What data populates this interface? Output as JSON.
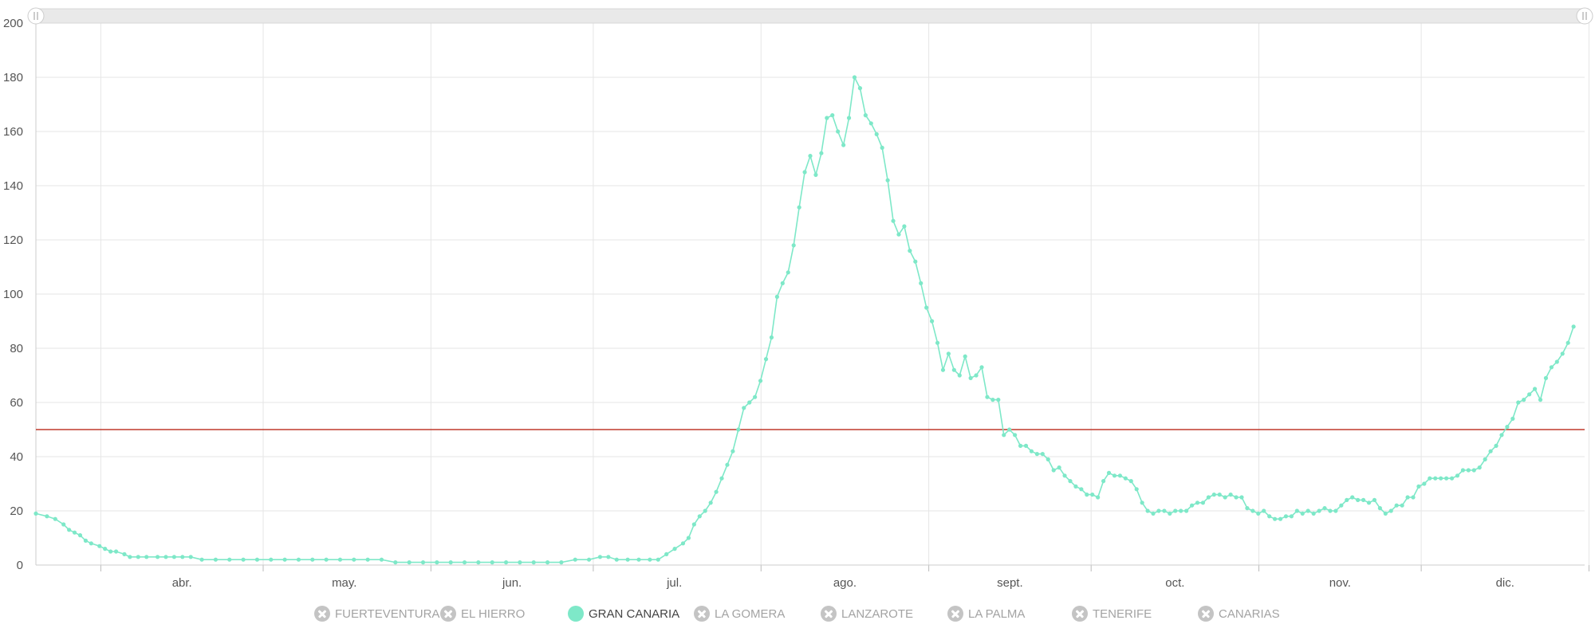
{
  "chart_data": {
    "type": "line",
    "title": "",
    "xlabel": "",
    "ylabel": "",
    "ylim": [
      0,
      200
    ],
    "yticks": [
      0,
      20,
      40,
      60,
      80,
      100,
      120,
      140,
      160,
      180,
      200
    ],
    "x_start": "2020-03-20",
    "months": [
      "abr.",
      "may.",
      "jun.",
      "jul.",
      "ago.",
      "sept.",
      "oct.",
      "nov.",
      "dic."
    ],
    "threshold": {
      "value": 50,
      "color": "#c0392b"
    },
    "grid": true,
    "legend_position": "bottom",
    "series": [
      {
        "name": "GRAN CANARIA",
        "color": "#7ee8c8",
        "points": [
          [
            0,
            19
          ],
          [
            4,
            18
          ],
          [
            7,
            17
          ],
          [
            10,
            15
          ],
          [
            12,
            13
          ],
          [
            14,
            12
          ],
          [
            16,
            11
          ],
          [
            18,
            9
          ],
          [
            20,
            8
          ],
          [
            23,
            7
          ],
          [
            25,
            6
          ],
          [
            27,
            5
          ],
          [
            29,
            5
          ],
          [
            32,
            4
          ],
          [
            34,
            3
          ],
          [
            37,
            3
          ],
          [
            40,
            3
          ],
          [
            44,
            3
          ],
          [
            47,
            3
          ],
          [
            50,
            3
          ],
          [
            53,
            3
          ],
          [
            56,
            3
          ],
          [
            60,
            2
          ],
          [
            65,
            2
          ],
          [
            70,
            2
          ],
          [
            75,
            2
          ],
          [
            80,
            2
          ],
          [
            85,
            2
          ],
          [
            90,
            2
          ],
          [
            95,
            2
          ],
          [
            100,
            2
          ],
          [
            105,
            2
          ],
          [
            110,
            2
          ],
          [
            115,
            2
          ],
          [
            120,
            2
          ],
          [
            125,
            2
          ],
          [
            130,
            1
          ],
          [
            135,
            1
          ],
          [
            140,
            1
          ],
          [
            145,
            1
          ],
          [
            150,
            1
          ],
          [
            155,
            1
          ],
          [
            160,
            1
          ],
          [
            165,
            1
          ],
          [
            170,
            1
          ],
          [
            175,
            1
          ],
          [
            180,
            1
          ],
          [
            185,
            1
          ],
          [
            190,
            1
          ],
          [
            195,
            2
          ],
          [
            200,
            2
          ],
          [
            204,
            3
          ],
          [
            207,
            3
          ],
          [
            210,
            2
          ],
          [
            214,
            2
          ],
          [
            218,
            2
          ],
          [
            222,
            2
          ],
          [
            225,
            2
          ],
          [
            228,
            4
          ],
          [
            231,
            6
          ],
          [
            234,
            8
          ],
          [
            236,
            10
          ],
          [
            238,
            15
          ],
          [
            240,
            18
          ],
          [
            242,
            20
          ],
          [
            244,
            23
          ],
          [
            246,
            27
          ],
          [
            248,
            32
          ],
          [
            250,
            37
          ],
          [
            252,
            42
          ],
          [
            254,
            50
          ],
          [
            256,
            58
          ],
          [
            258,
            60
          ],
          [
            260,
            62
          ],
          [
            262,
            68
          ],
          [
            264,
            76
          ],
          [
            266,
            84
          ],
          [
            268,
            99
          ],
          [
            270,
            104
          ],
          [
            272,
            108
          ],
          [
            274,
            118
          ],
          [
            276,
            132
          ],
          [
            278,
            145
          ],
          [
            280,
            151
          ],
          [
            282,
            144
          ],
          [
            284,
            152
          ],
          [
            286,
            165
          ],
          [
            288,
            166
          ],
          [
            290,
            160
          ],
          [
            292,
            155
          ],
          [
            294,
            165
          ],
          [
            296,
            180
          ],
          [
            298,
            176
          ],
          [
            300,
            166
          ],
          [
            302,
            163
          ],
          [
            304,
            159
          ],
          [
            306,
            154
          ],
          [
            308,
            142
          ],
          [
            310,
            127
          ],
          [
            312,
            122
          ],
          [
            314,
            125
          ],
          [
            316,
            116
          ],
          [
            318,
            112
          ],
          [
            320,
            104
          ],
          [
            322,
            95
          ],
          [
            324,
            90
          ],
          [
            326,
            82
          ],
          [
            328,
            72
          ],
          [
            330,
            78
          ],
          [
            332,
            72
          ],
          [
            334,
            70
          ],
          [
            336,
            77
          ],
          [
            338,
            69
          ],
          [
            340,
            70
          ],
          [
            342,
            73
          ],
          [
            344,
            62
          ],
          [
            346,
            61
          ],
          [
            348,
            61
          ],
          [
            350,
            48
          ],
          [
            352,
            50
          ],
          [
            354,
            48
          ],
          [
            356,
            44
          ],
          [
            358,
            44
          ],
          [
            360,
            42
          ],
          [
            362,
            41
          ],
          [
            364,
            41
          ],
          [
            366,
            39
          ],
          [
            368,
            35
          ],
          [
            370,
            36
          ],
          [
            372,
            33
          ],
          [
            374,
            31
          ],
          [
            376,
            29
          ],
          [
            378,
            28
          ],
          [
            380,
            26
          ],
          [
            382,
            26
          ],
          [
            384,
            25
          ],
          [
            386,
            31
          ],
          [
            388,
            34
          ],
          [
            390,
            33
          ],
          [
            392,
            33
          ],
          [
            394,
            32
          ],
          [
            396,
            31
          ],
          [
            398,
            28
          ],
          [
            400,
            23
          ],
          [
            402,
            20
          ],
          [
            404,
            19
          ],
          [
            406,
            20
          ],
          [
            408,
            20
          ],
          [
            410,
            19
          ],
          [
            412,
            20
          ],
          [
            414,
            20
          ],
          [
            416,
            20
          ],
          [
            418,
            22
          ],
          [
            420,
            23
          ],
          [
            422,
            23
          ],
          [
            424,
            25
          ],
          [
            426,
            26
          ],
          [
            428,
            26
          ],
          [
            430,
            25
          ],
          [
            432,
            26
          ],
          [
            434,
            25
          ],
          [
            436,
            25
          ],
          [
            438,
            21
          ],
          [
            440,
            20
          ],
          [
            442,
            19
          ],
          [
            444,
            20
          ],
          [
            446,
            18
          ],
          [
            448,
            17
          ],
          [
            450,
            17
          ],
          [
            452,
            18
          ],
          [
            454,
            18
          ],
          [
            456,
            20
          ],
          [
            458,
            19
          ],
          [
            460,
            20
          ],
          [
            462,
            19
          ],
          [
            464,
            20
          ],
          [
            466,
            21
          ],
          [
            468,
            20
          ],
          [
            470,
            20
          ],
          [
            472,
            22
          ],
          [
            474,
            24
          ],
          [
            476,
            25
          ],
          [
            478,
            24
          ],
          [
            480,
            24
          ],
          [
            482,
            23
          ],
          [
            484,
            24
          ],
          [
            486,
            21
          ],
          [
            488,
            19
          ],
          [
            490,
            20
          ],
          [
            492,
            22
          ],
          [
            494,
            22
          ],
          [
            496,
            25
          ],
          [
            498,
            25
          ],
          [
            500,
            29
          ],
          [
            502,
            30
          ],
          [
            504,
            32
          ],
          [
            506,
            32
          ],
          [
            508,
            32
          ],
          [
            510,
            32
          ],
          [
            512,
            32
          ],
          [
            514,
            33
          ],
          [
            516,
            35
          ],
          [
            518,
            35
          ],
          [
            520,
            35
          ],
          [
            522,
            36
          ],
          [
            524,
            39
          ],
          [
            526,
            42
          ],
          [
            528,
            44
          ],
          [
            530,
            48
          ],
          [
            532,
            51
          ],
          [
            534,
            54
          ],
          [
            536,
            60
          ],
          [
            538,
            61
          ],
          [
            540,
            63
          ],
          [
            542,
            65
          ],
          [
            544,
            61
          ],
          [
            546,
            69
          ],
          [
            548,
            73
          ],
          [
            550,
            75
          ],
          [
            552,
            78
          ],
          [
            554,
            82
          ],
          [
            556,
            88
          ]
        ]
      }
    ],
    "legend": [
      {
        "label": "FUERTEVENTURA",
        "active": false
      },
      {
        "label": "EL HIERRO",
        "active": false
      },
      {
        "label": "GRAN CANARIA",
        "active": true
      },
      {
        "label": "LA GOMERA",
        "active": false
      },
      {
        "label": "LANZAROTE",
        "active": false
      },
      {
        "label": "LA PALMA",
        "active": false
      },
      {
        "label": "TENERIFE",
        "active": false
      },
      {
        "label": "CANARIAS",
        "active": false
      }
    ]
  }
}
